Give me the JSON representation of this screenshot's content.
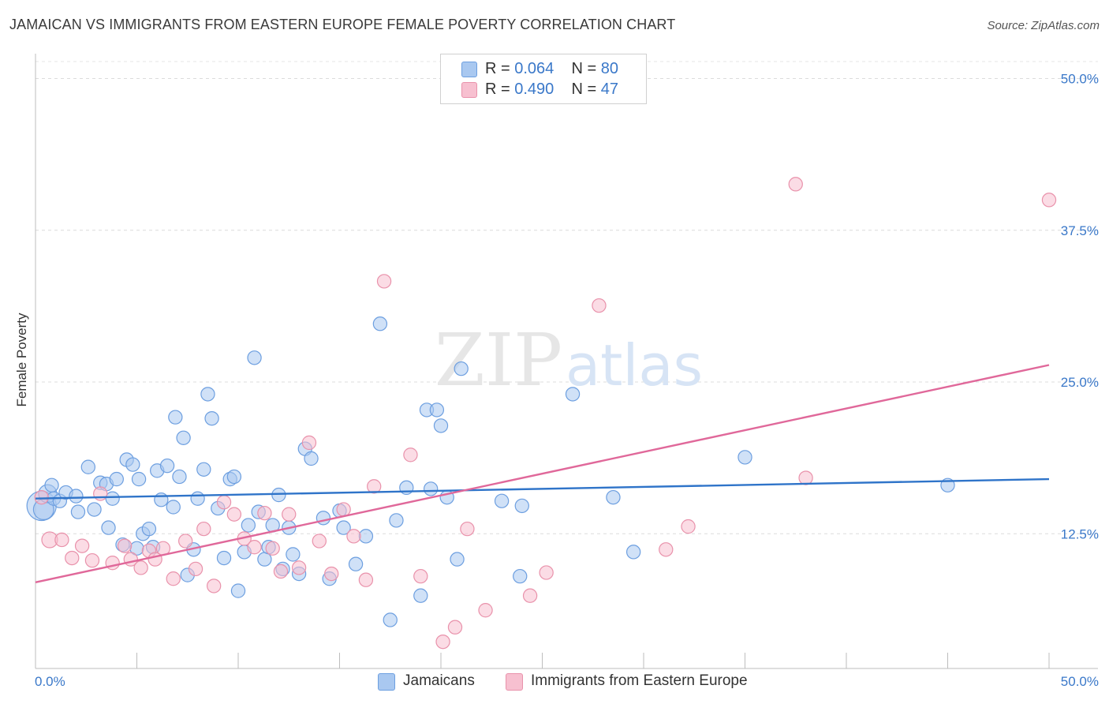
{
  "header": {
    "title": "JAMAICAN VS IMMIGRANTS FROM EASTERN EUROPE FEMALE POVERTY CORRELATION CHART",
    "source": "Source: ZipAtlas.com"
  },
  "watermark": {
    "zip": "ZIP",
    "atlas": "atlas"
  },
  "legend": {
    "rows": [
      {
        "r_label": "R = ",
        "r_value": "0.064",
        "n_label": "N = ",
        "n_value": "80",
        "color": "#a9c8f0",
        "border": "#6d9fe0"
      },
      {
        "r_label": "R = ",
        "r_value": "0.490",
        "n_label": "N = ",
        "n_value": "47",
        "color": "#f7c0d0",
        "border": "#e992ab"
      }
    ]
  },
  "bottom_legend": [
    {
      "label": "Jamaicans",
      "color": "#a9c8f0",
      "border": "#6d9fe0"
    },
    {
      "label": "Immigrants from Eastern Europe",
      "color": "#f7c0d0",
      "border": "#e992ab"
    }
  ],
  "chart_data": {
    "type": "scatter",
    "title": "JAMAICAN VS IMMIGRANTS FROM EASTERN EUROPE FEMALE POVERTY CORRELATION CHART",
    "xlabel": "",
    "ylabel": "Female Poverty",
    "xlim": [
      0,
      50
    ],
    "ylim": [
      1.4,
      51.4
    ],
    "x_tick_labels": [
      "0.0%",
      "50.0%"
    ],
    "y_ticks": [
      12.5,
      25.0,
      37.5,
      50.0
    ],
    "y_tick_labels": [
      "12.5%",
      "25.0%",
      "37.5%",
      "50.0%"
    ],
    "grid": "horizontal dashed",
    "series": [
      {
        "name": "Jamaicans",
        "color": "#6d9fe0",
        "fill": "#a9c8f0",
        "trend_color": "#2f74c9",
        "trend": {
          "x": [
            0,
            50
          ],
          "y": [
            15.4,
            17.0
          ]
        },
        "points": [
          [
            0.3,
            14.8,
            26
          ],
          [
            0.4,
            14.5,
            18
          ],
          [
            0.6,
            15.8,
            16
          ],
          [
            0.9,
            15.4,
            12
          ],
          [
            0.8,
            16.5,
            12
          ],
          [
            1.2,
            15.2,
            12
          ],
          [
            1.5,
            15.9,
            12
          ],
          [
            2.0,
            15.6,
            12
          ],
          [
            2.1,
            14.3,
            12
          ],
          [
            2.6,
            18.0,
            12
          ],
          [
            2.9,
            14.5,
            12
          ],
          [
            3.2,
            16.7,
            12
          ],
          [
            3.5,
            16.6,
            12
          ],
          [
            3.6,
            13.0,
            12
          ],
          [
            3.8,
            15.4,
            12
          ],
          [
            4.0,
            17.0,
            12
          ],
          [
            4.3,
            11.6,
            12
          ],
          [
            4.5,
            18.6,
            12
          ],
          [
            4.8,
            18.2,
            12
          ],
          [
            5.0,
            11.3,
            12
          ],
          [
            5.1,
            17.0,
            12
          ],
          [
            5.3,
            12.5,
            12
          ],
          [
            5.6,
            12.9,
            12
          ],
          [
            5.8,
            11.4,
            12
          ],
          [
            6.0,
            17.7,
            12
          ],
          [
            6.2,
            15.3,
            12
          ],
          [
            6.5,
            18.1,
            12
          ],
          [
            6.8,
            14.7,
            12
          ],
          [
            6.9,
            22.1,
            12
          ],
          [
            7.1,
            17.2,
            12
          ],
          [
            7.3,
            20.4,
            12
          ],
          [
            7.5,
            9.1,
            12
          ],
          [
            7.8,
            11.2,
            12
          ],
          [
            8.0,
            15.4,
            12
          ],
          [
            8.3,
            17.8,
            12
          ],
          [
            8.5,
            24.0,
            12
          ],
          [
            8.7,
            22.0,
            12
          ],
          [
            9.0,
            14.6,
            12
          ],
          [
            9.3,
            10.5,
            12
          ],
          [
            9.6,
            17.0,
            12
          ],
          [
            9.8,
            17.2,
            12
          ],
          [
            10.0,
            7.8,
            12
          ],
          [
            10.3,
            11.0,
            12
          ],
          [
            10.5,
            13.2,
            12
          ],
          [
            10.8,
            27.0,
            12
          ],
          [
            11.0,
            14.3,
            12
          ],
          [
            11.3,
            10.4,
            12
          ],
          [
            11.5,
            11.4,
            12
          ],
          [
            11.7,
            13.2,
            12
          ],
          [
            12.0,
            15.7,
            12
          ],
          [
            12.2,
            9.6,
            12
          ],
          [
            12.5,
            13.0,
            12
          ],
          [
            12.7,
            10.8,
            12
          ],
          [
            13.0,
            9.2,
            12
          ],
          [
            13.3,
            19.5,
            12
          ],
          [
            13.6,
            18.7,
            12
          ],
          [
            14.2,
            13.8,
            12
          ],
          [
            14.5,
            8.8,
            12
          ],
          [
            15.0,
            14.4,
            12
          ],
          [
            15.2,
            13.0,
            12
          ],
          [
            15.8,
            10.0,
            12
          ],
          [
            16.3,
            12.3,
            12
          ],
          [
            17.0,
            29.8,
            12
          ],
          [
            17.5,
            5.4,
            12
          ],
          [
            17.8,
            13.6,
            12
          ],
          [
            18.3,
            16.3,
            12
          ],
          [
            19.0,
            7.4,
            12
          ],
          [
            19.3,
            22.7,
            12
          ],
          [
            19.5,
            16.2,
            12
          ],
          [
            19.8,
            22.7,
            12
          ],
          [
            20.0,
            21.4,
            12
          ],
          [
            20.3,
            15.5,
            12
          ],
          [
            20.8,
            10.4,
            12
          ],
          [
            21.0,
            26.1,
            12
          ],
          [
            23.0,
            15.2,
            12
          ],
          [
            23.9,
            9.0,
            12
          ],
          [
            24.0,
            14.8,
            12
          ],
          [
            26.5,
            24.0,
            12
          ],
          [
            28.5,
            15.5,
            12
          ],
          [
            29.5,
            11.0,
            12
          ],
          [
            35.0,
            18.8,
            12
          ],
          [
            45.0,
            16.5,
            12
          ]
        ]
      },
      {
        "name": "Immigrants from Eastern Europe",
        "color": "#e992ab",
        "fill": "#f7c0d0",
        "trend_color": "#e0689a",
        "trend": {
          "x": [
            0,
            50
          ],
          "y": [
            8.5,
            26.4
          ]
        },
        "points": [
          [
            0.3,
            15.5,
            12
          ],
          [
            0.7,
            12.0,
            14
          ],
          [
            1.3,
            12.0,
            12
          ],
          [
            1.8,
            10.5,
            12
          ],
          [
            2.3,
            11.5,
            12
          ],
          [
            2.8,
            10.3,
            12
          ],
          [
            3.2,
            15.8,
            12
          ],
          [
            3.8,
            10.1,
            12
          ],
          [
            4.4,
            11.5,
            12
          ],
          [
            4.7,
            10.4,
            12
          ],
          [
            5.2,
            9.7,
            12
          ],
          [
            5.6,
            11.1,
            12
          ],
          [
            5.9,
            10.4,
            12
          ],
          [
            6.3,
            11.3,
            12
          ],
          [
            6.8,
            8.8,
            12
          ],
          [
            7.4,
            11.9,
            12
          ],
          [
            7.9,
            9.6,
            12
          ],
          [
            8.3,
            12.9,
            12
          ],
          [
            8.8,
            8.2,
            12
          ],
          [
            9.3,
            15.1,
            12
          ],
          [
            9.8,
            14.1,
            12
          ],
          [
            10.3,
            12.1,
            12
          ],
          [
            10.8,
            11.4,
            12
          ],
          [
            11.3,
            14.2,
            12
          ],
          [
            11.7,
            11.3,
            12
          ],
          [
            12.1,
            9.4,
            12
          ],
          [
            12.5,
            14.1,
            12
          ],
          [
            13.0,
            9.7,
            12
          ],
          [
            13.5,
            20.0,
            12
          ],
          [
            14.0,
            11.9,
            12
          ],
          [
            14.6,
            9.2,
            12
          ],
          [
            15.2,
            14.5,
            12
          ],
          [
            15.7,
            12.3,
            12
          ],
          [
            16.3,
            8.7,
            12
          ],
          [
            16.7,
            16.4,
            12
          ],
          [
            17.2,
            33.3,
            12
          ],
          [
            18.5,
            19.0,
            12
          ],
          [
            19.0,
            9.0,
            12
          ],
          [
            20.1,
            3.6,
            12
          ],
          [
            20.7,
            4.8,
            12
          ],
          [
            21.3,
            12.9,
            12
          ],
          [
            22.2,
            6.2,
            12
          ],
          [
            24.4,
            7.4,
            12
          ],
          [
            25.2,
            9.3,
            12
          ],
          [
            27.8,
            31.3,
            12
          ],
          [
            31.1,
            11.2,
            12
          ],
          [
            32.2,
            13.1,
            12
          ],
          [
            37.5,
            41.3,
            12
          ],
          [
            38.0,
            17.1,
            12
          ],
          [
            50.0,
            40.0,
            12
          ]
        ]
      }
    ]
  }
}
